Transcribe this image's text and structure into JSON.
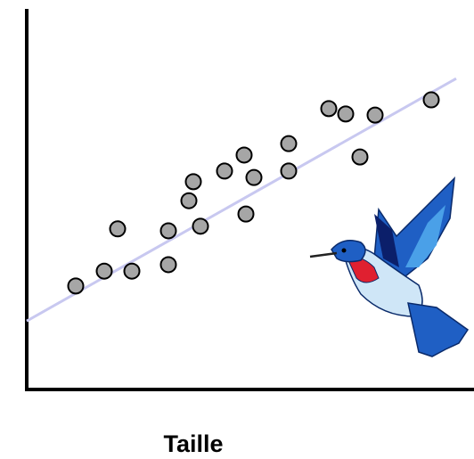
{
  "chart_data": {
    "type": "scatter",
    "x_label": "Taille",
    "color": "#a6a6a6",
    "x": [
      11,
      17.4,
      23.6,
      31.8,
      20.4,
      31.8,
      39,
      36.4,
      37.4,
      44.4,
      48.8,
      51,
      49.2,
      58.8,
      58.8,
      67.8,
      71.6,
      78.2,
      74.8,
      90.8
    ],
    "values": [
      27.2,
      31.1,
      31.1,
      32.8,
      42.2,
      41.7,
      42.9,
      49.6,
      54.6,
      57.4,
      61.6,
      55.7,
      46.1,
      64.6,
      57.4,
      73.8,
      72.4,
      72.1,
      61.1,
      76.1
    ],
    "trendline": {
      "color": "#c8c8f0",
      "x": [
        0,
        96.4
      ],
      "y": [
        18,
        81.7
      ]
    },
    "xlim": [
      0,
      100
    ],
    "ylim": [
      0,
      100
    ]
  }
}
